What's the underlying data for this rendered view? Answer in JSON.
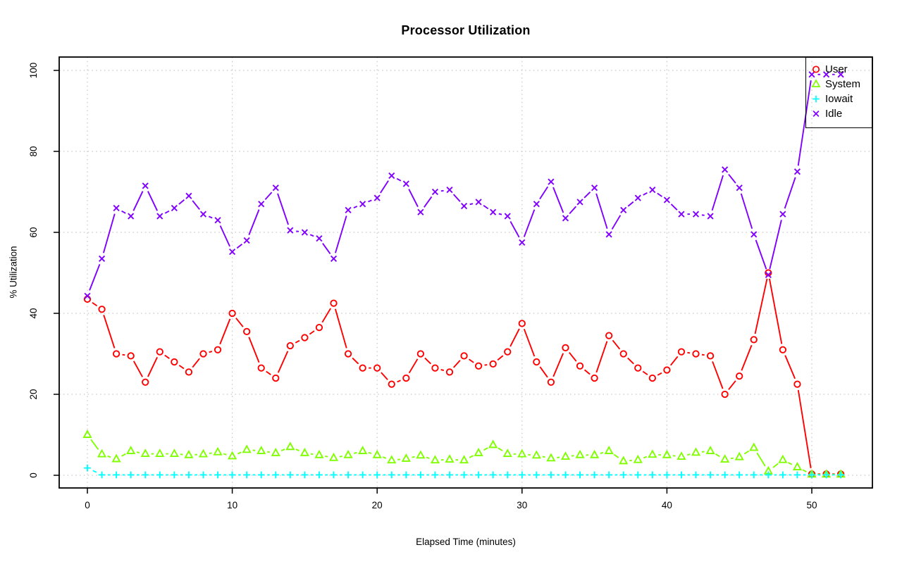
{
  "page": {
    "background": "#ffffff"
  },
  "chart_data": {
    "type": "line",
    "title": "Processor Utilization",
    "xlabel": "Elapsed Time (minutes)",
    "ylabel": "% Utilization",
    "x_ticks": [
      0,
      10,
      20,
      30,
      40,
      50
    ],
    "y_ticks": [
      0,
      20,
      40,
      60,
      80,
      100
    ],
    "xlim": [
      -2,
      54
    ],
    "ylim": [
      -4,
      104
    ],
    "grid": true,
    "grid_style": "dotted-gray",
    "legend_position": "topright",
    "legend": [
      "User",
      "System",
      "Iowait",
      "Idle"
    ],
    "x": [
      0,
      1,
      2,
      3,
      4,
      5,
      6,
      7,
      8,
      9,
      10,
      11,
      12,
      13,
      14,
      15,
      16,
      17,
      18,
      19,
      20,
      21,
      22,
      23,
      24,
      25,
      26,
      27,
      28,
      29,
      30,
      31,
      32,
      33,
      34,
      35,
      36,
      37,
      38,
      39,
      40,
      41,
      42,
      43,
      44,
      45,
      46,
      47,
      48,
      49,
      50,
      51,
      52
    ],
    "series": [
      {
        "name": "User",
        "color": "#FF0000",
        "marker": "circle",
        "values": [
          43.5,
          41,
          30,
          29.5,
          23,
          30.5,
          28,
          25.5,
          30,
          31,
          40,
          35.5,
          26.5,
          24,
          32,
          34,
          36.5,
          42.5,
          30,
          26.5,
          26.5,
          22.5,
          24,
          30,
          26.5,
          25.5,
          29.5,
          27,
          27.5,
          30.5,
          37.5,
          28,
          23,
          31.5,
          27,
          24,
          34.5,
          30,
          26.5,
          24,
          26,
          30.5,
          30,
          29.5,
          20,
          24.5,
          33.5,
          50,
          31,
          22.5,
          0.3,
          0.3,
          0.3
        ]
      },
      {
        "name": "System",
        "color": "#80FF00",
        "marker": "triangle",
        "values": [
          10,
          5.2,
          4,
          6,
          5.3,
          5.3,
          5.3,
          5,
          5.2,
          5.7,
          4.7,
          6.3,
          6,
          5.5,
          7,
          5.5,
          5,
          4.3,
          5,
          6,
          5,
          3.7,
          4.1,
          4.9,
          3.7,
          3.9,
          3.7,
          5.5,
          7.5,
          5.3,
          5.2,
          4.9,
          4.2,
          4.6,
          5,
          5,
          6,
          3.5,
          3.8,
          5.1,
          5,
          4.6,
          5.6,
          6,
          3.9,
          4.5,
          6.8,
          1,
          3.8,
          2,
          0.2,
          0.2,
          0.2
        ]
      },
      {
        "name": "Iowait",
        "color": "#00FFFF",
        "marker": "plus",
        "values": [
          1.8,
          0.1,
          0.1,
          0.1,
          0.1,
          0.1,
          0.1,
          0.1,
          0.1,
          0.1,
          0.1,
          0.1,
          0.1,
          0.1,
          0.1,
          0.1,
          0.1,
          0.1,
          0.1,
          0.1,
          0.1,
          0.1,
          0.1,
          0.1,
          0.1,
          0.1,
          0.1,
          0.1,
          0.1,
          0.1,
          0.1,
          0.1,
          0.1,
          0.1,
          0.1,
          0.1,
          0.1,
          0.1,
          0.1,
          0.1,
          0.1,
          0.1,
          0.1,
          0.1,
          0.1,
          0.1,
          0.1,
          0.1,
          0.1,
          0.1,
          0.1,
          0.1,
          0.1
        ]
      },
      {
        "name": "Idle",
        "color": "#8000FF",
        "marker": "x",
        "values": [
          44.3,
          53.5,
          66,
          64,
          71.5,
          64,
          66,
          69,
          64.5,
          63,
          55.2,
          58,
          67,
          71,
          60.5,
          60,
          58.5,
          53.5,
          65.5,
          67,
          68.5,
          74,
          72,
          65,
          70,
          70.5,
          66.5,
          67.5,
          65,
          64,
          57.5,
          67,
          72.5,
          63.5,
          67.5,
          71,
          59.5,
          65.5,
          68.5,
          70.5,
          68,
          64.5,
          64.5,
          64,
          75.5,
          71,
          59.5,
          49.5,
          64.5,
          75,
          99,
          99,
          99
        ]
      }
    ]
  }
}
